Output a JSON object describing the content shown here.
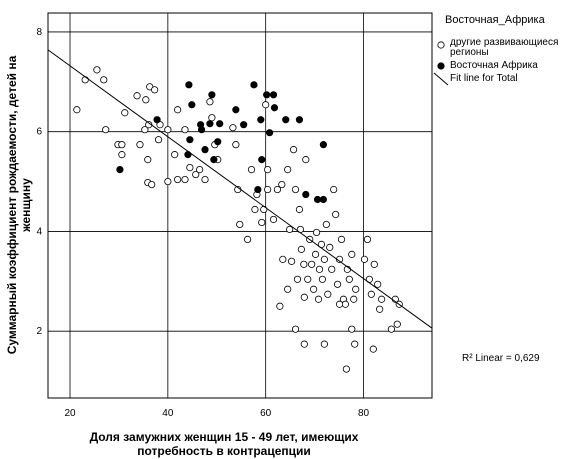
{
  "chart_data": {
    "type": "scatter",
    "xlabel": [
      "Доля замужних женщин 15 - 49 лет, имеющих",
      "потребность в контрацепции"
    ],
    "ylabel": [
      "Суммарный коэффициент рождаемости, детей на",
      "женщину"
    ],
    "legend_title": "Восточная_Африка",
    "xlim": [
      15.5,
      94
    ],
    "ylim": [
      0.66,
      8.38
    ],
    "xticks": [
      20,
      40,
      60,
      80
    ],
    "yticks": [
      2,
      4,
      6,
      8
    ],
    "grid": true,
    "series": [
      {
        "name": "другие развивающиеся регионы",
        "color": "#ffffff",
        "marker": "open",
        "x": [
          21.4,
          23.1,
          25.5,
          26.9,
          27.3,
          31.2,
          29.8,
          30.6,
          30.6,
          33.7,
          35.5,
          34.3,
          35.3,
          36.1,
          36.3,
          37.3,
          35.9,
          35.9,
          36.7,
          38.1,
          38.4,
          40.0,
          40.0,
          42.0,
          41.4,
          43.5,
          42.0,
          43.5,
          44.5,
          45.7,
          46.5,
          47.6,
          49.0,
          48.6,
          49.6,
          50.2,
          53.3,
          53.9,
          54.3,
          54.7,
          56.3,
          57.1,
          57.8,
          58.2,
          59.2,
          59.6,
          60.0,
          60.4,
          60.4,
          61.6,
          62.4,
          63.3,
          63.5,
          64.5,
          64.9,
          65.3,
          65.7,
          66.1,
          66.5,
          66.9,
          67.1,
          67.3,
          67.8,
          67.9,
          68.2,
          68.6,
          69.0,
          69.4,
          69.8,
          70.2,
          70.4,
          70.8,
          71.0,
          71.4,
          71.6,
          72.0,
          72.4,
          72.7,
          73.1,
          73.5,
          73.9,
          74.3,
          74.7,
          75.1,
          75.5,
          75.9,
          76.3,
          76.7,
          77.1,
          77.6,
          78.0,
          78.4,
          80.2,
          80.8,
          81.2,
          81.6,
          82.2,
          82.9,
          83.3,
          83.7,
          86.5,
          86.9,
          87.3,
          85.7,
          66.1,
          67.9,
          72.0,
          78.2,
          82.0,
          76.5,
          77.6,
          75.1,
          64.5,
          62.9
        ],
        "y": [
          6.44,
          7.04,
          7.24,
          7.04,
          6.04,
          6.38,
          5.74,
          5.74,
          5.54,
          6.72,
          6.64,
          5.74,
          6.04,
          6.14,
          6.9,
          6.84,
          5.44,
          4.98,
          4.94,
          5.84,
          6.14,
          6.04,
          5.0,
          6.44,
          5.54,
          6.04,
          5.04,
          5.04,
          5.28,
          5.14,
          5.24,
          5.04,
          6.28,
          6.6,
          5.74,
          5.44,
          6.08,
          5.74,
          4.84,
          4.14,
          3.84,
          5.24,
          4.44,
          4.74,
          4.18,
          4.44,
          6.54,
          5.24,
          4.84,
          4.24,
          4.84,
          4.94,
          3.44,
          5.24,
          4.04,
          3.4,
          5.64,
          4.84,
          3.04,
          4.44,
          4.04,
          3.64,
          3.34,
          2.68,
          5.44,
          3.04,
          3.84,
          3.34,
          2.84,
          3.54,
          3.98,
          2.64,
          3.24,
          3.74,
          3.04,
          3.44,
          4.14,
          2.74,
          3.68,
          3.24,
          4.84,
          4.34,
          2.94,
          3.44,
          3.84,
          2.64,
          2.54,
          3.24,
          3.04,
          3.54,
          2.64,
          2.84,
          3.44,
          3.84,
          3.04,
          2.74,
          3.34,
          2.94,
          2.44,
          2.64,
          2.64,
          2.14,
          2.54,
          2.04,
          2.04,
          1.74,
          1.74,
          1.74,
          1.64,
          1.24,
          2.04,
          2.54,
          2.84,
          2.5
        ]
      },
      {
        "name": "Восточная Африка",
        "color": "#000000",
        "marker": "filled",
        "x": [
          30.2,
          37.8,
          44.3,
          44.9,
          44.1,
          44.5,
          46.7,
          47.6,
          49.0,
          48.6,
          49.4,
          50.6,
          50.2,
          46.9,
          53.9,
          55.5,
          57.6,
          59.0,
          59.2,
          58.4,
          60.2,
          60.8,
          61.6,
          61.8,
          64.1,
          66.9,
          68.2,
          70.6,
          71.8,
          71.8
        ],
        "y": [
          5.24,
          6.24,
          6.94,
          6.54,
          5.54,
          5.84,
          6.14,
          5.64,
          6.74,
          6.16,
          5.44,
          6.16,
          5.8,
          6.04,
          6.44,
          6.14,
          6.94,
          6.24,
          5.44,
          4.84,
          6.74,
          5.98,
          6.74,
          6.48,
          6.24,
          6.24,
          4.74,
          4.64,
          4.64,
          5.74
        ]
      }
    ],
    "fit_line": {
      "name": "Fit line for Total",
      "color": "#000000",
      "x": [
        15.5,
        94
      ],
      "y": [
        7.64,
        2.06
      ]
    },
    "annotation": "R² Linear = 0,629"
  }
}
